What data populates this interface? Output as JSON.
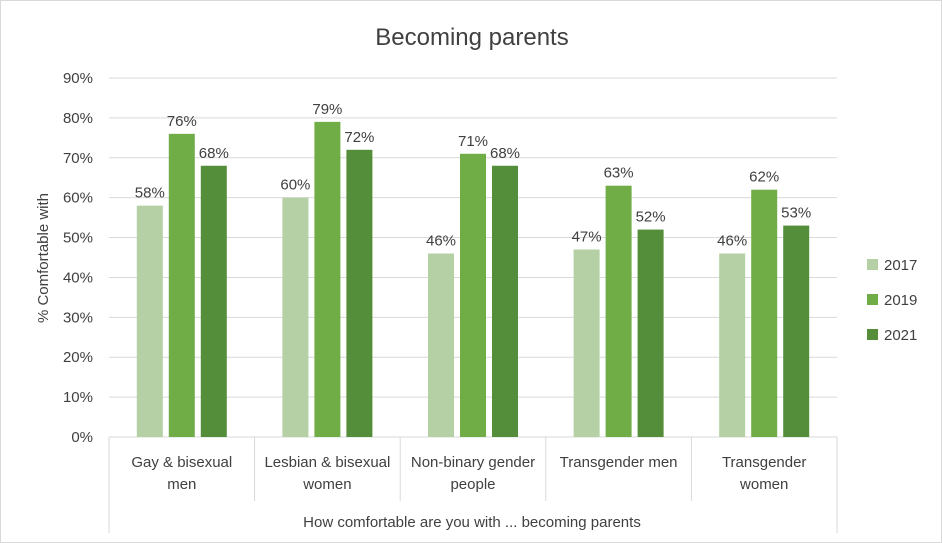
{
  "chart_data": {
    "type": "bar",
    "title": "Becoming parents",
    "xlabel": "How comfortable are you with ... becoming parents",
    "ylabel": "% Comfortable with",
    "ylim": [
      0,
      90
    ],
    "yticks": [
      "0%",
      "10%",
      "20%",
      "30%",
      "40%",
      "50%",
      "60%",
      "70%",
      "80%",
      "90%"
    ],
    "categories": [
      [
        "Gay & bisexual",
        "men"
      ],
      [
        "Lesbian & bisexual",
        "women"
      ],
      [
        "Non-binary gender",
        "people"
      ],
      [
        "Transgender men"
      ],
      [
        "Transgender",
        "women"
      ]
    ],
    "series": [
      {
        "name": "2017",
        "color": "#b4d0a4",
        "values": [
          58,
          60,
          46,
          47,
          46
        ]
      },
      {
        "name": "2019",
        "color": "#70ad47",
        "values": [
          76,
          79,
          71,
          63,
          62
        ]
      },
      {
        "name": "2021",
        "color": "#548e3a",
        "values": [
          68,
          72,
          68,
          52,
          53
        ]
      }
    ],
    "value_suffix": "%",
    "grid": true,
    "legend_position": "right"
  }
}
